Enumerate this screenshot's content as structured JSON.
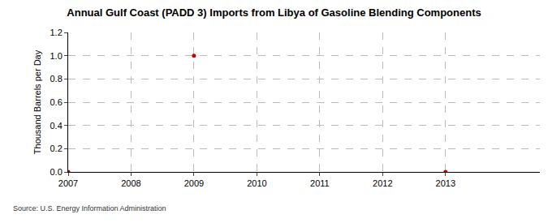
{
  "chart_data": {
    "type": "line",
    "title": "Annual Gulf Coast (PADD 3) Imports from Libya of Gasoline Blending Components",
    "y_label": "Thousand Barrels per Day",
    "annotations": [
      "Source: U.S. Energy Information Administration"
    ],
    "x": [
      2007,
      2008,
      2009,
      2010,
      2011,
      2012,
      2013
    ],
    "values": [
      0,
      null,
      1,
      null,
      null,
      null,
      0
    ],
    "color": "#cc0000",
    "marker": "circle",
    "xlim": [
      2007,
      2014.5
    ],
    "xticks": [
      2007,
      2008,
      2009,
      2010,
      2011,
      2012,
      2013
    ],
    "ylim": [
      0,
      1.2
    ],
    "yticks": [
      {
        "value": 0,
        "label": "0.0"
      },
      0.2,
      0.4,
      0.6,
      0.8,
      {
        "value": 1,
        "label": "1.0"
      },
      1.2
    ],
    "grid": true
  }
}
